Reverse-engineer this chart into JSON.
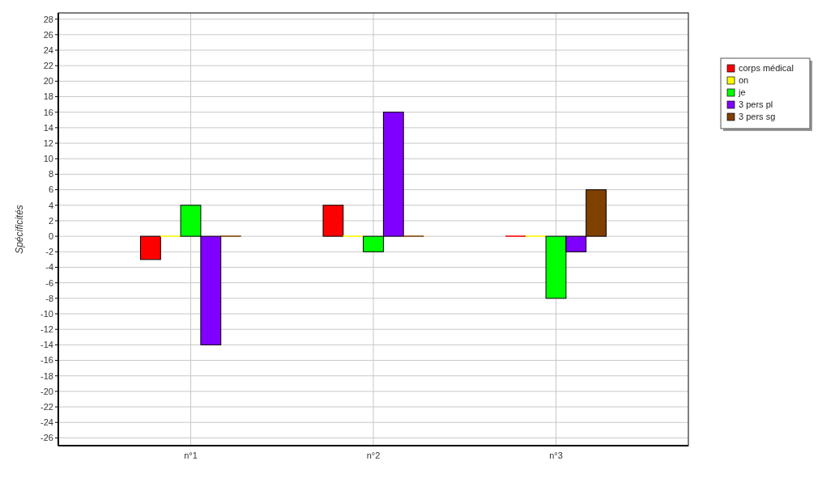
{
  "chart_data": {
    "type": "bar",
    "ylabel": "Spécificités",
    "categories": [
      "n°1",
      "n°2",
      "n°3"
    ],
    "series": [
      {
        "name": "corps médical",
        "color": "#ff0000",
        "values": [
          -3,
          4,
          0
        ]
      },
      {
        "name": "on",
        "color": "#ffff00",
        "values": [
          0,
          0,
          0
        ]
      },
      {
        "name": "je",
        "color": "#00ff00",
        "values": [
          4,
          -2,
          -8
        ]
      },
      {
        "name": "3 pers pl",
        "color": "#8000ff",
        "values": [
          -14,
          16,
          -2
        ]
      },
      {
        "name": "3 pers sg",
        "color": "#804000",
        "values": [
          0,
          0,
          6
        ]
      }
    ],
    "ylim": [
      -27,
      28.8
    ],
    "yticks": [
      -26,
      -24,
      -22,
      -20,
      -18,
      -16,
      -14,
      -12,
      -10,
      -8,
      -6,
      -4,
      -2,
      0,
      2,
      4,
      6,
      8,
      10,
      12,
      14,
      16,
      18,
      20,
      22,
      24,
      26,
      28
    ],
    "grid": true,
    "legend": "right"
  }
}
